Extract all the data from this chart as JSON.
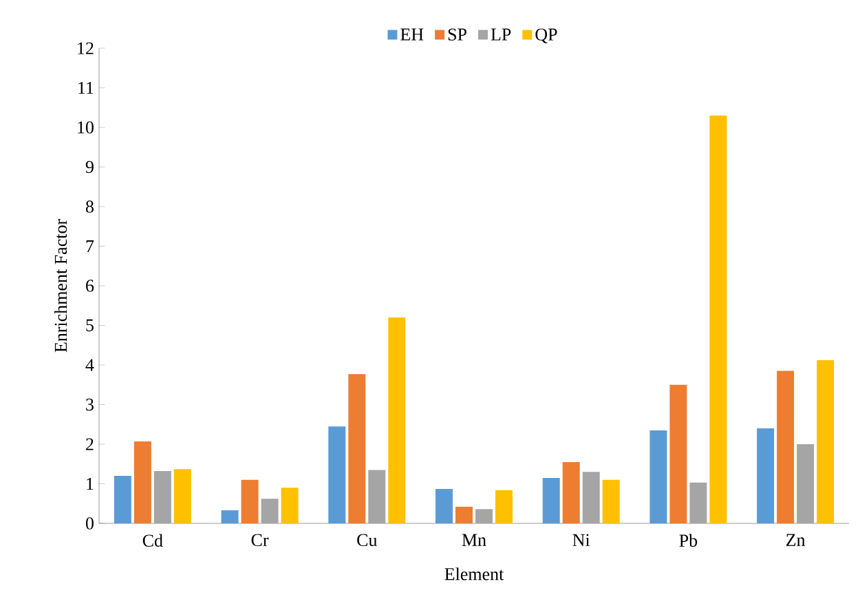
{
  "chart_data": {
    "type": "bar",
    "xlabel": "Element",
    "ylabel": "Enrichment Factor",
    "categories": [
      "Cd",
      "Cr",
      "Cu",
      "Mn",
      "Ni",
      "Pb",
      "Zn"
    ],
    "series": [
      {
        "name": "EH",
        "color": "#5b9bd5",
        "values": [
          1.2,
          0.33,
          2.45,
          0.87,
          1.15,
          2.35,
          2.4
        ]
      },
      {
        "name": "SP",
        "color": "#ed7d31",
        "values": [
          2.07,
          1.1,
          3.77,
          0.42,
          1.55,
          3.5,
          3.85
        ]
      },
      {
        "name": "LP",
        "color": "#a5a5a5",
        "values": [
          1.32,
          0.62,
          1.35,
          0.36,
          1.3,
          1.03,
          2.0
        ]
      },
      {
        "name": "QP",
        "color": "#ffc000",
        "values": [
          1.37,
          0.9,
          5.2,
          0.84,
          1.1,
          10.3,
          4.12
        ]
      }
    ],
    "ylim": [
      0,
      12
    ],
    "yticks": [
      0,
      1,
      2,
      3,
      4,
      5,
      6,
      7,
      8,
      9,
      10,
      11,
      12
    ],
    "grid": false,
    "legend": "top"
  }
}
